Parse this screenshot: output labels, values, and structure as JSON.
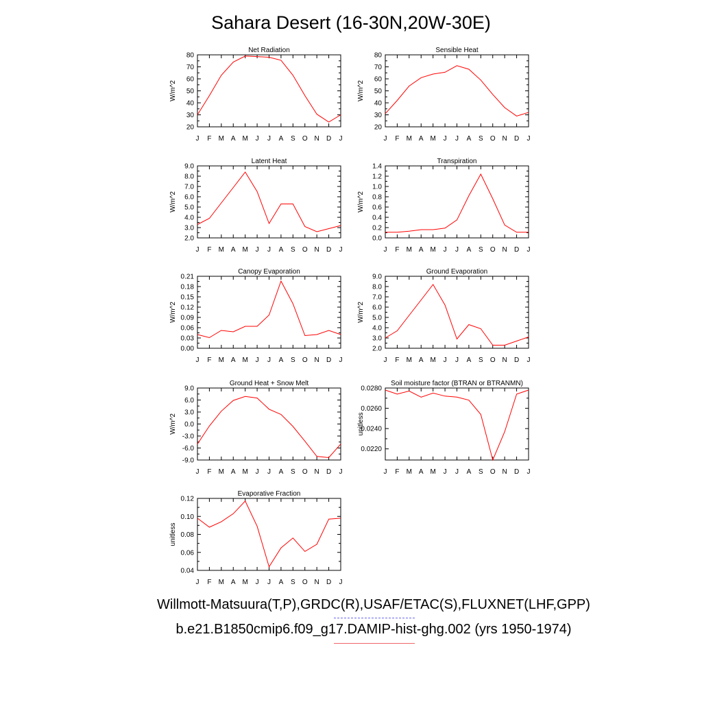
{
  "title": "Sahara Desert (16-30N,20W-30E)",
  "footer": {
    "obs": "Willmott-Matsuura(T,P),GRDC(R),USAF/ETAC(S),FLUXNET(LHF,GPP)",
    "model": "b.e21.B1850cmip6.f09_g17.DAMIP-hist-ghg.002 (yrs 1950-1974)"
  },
  "colors": {
    "line": "#ff0000",
    "obs_legend": "#6666ee",
    "model_legend": "#ee6666"
  },
  "chart_data": [
    {
      "type": "line",
      "title": "Net Radiation",
      "ylabel": "W/m^2",
      "categories": [
        "J",
        "F",
        "M",
        "A",
        "M",
        "J",
        "J",
        "A",
        "S",
        "O",
        "N",
        "D",
        "J"
      ],
      "ylim": [
        20,
        80
      ],
      "yticks": [
        "20",
        "30",
        "40",
        "50",
        "60",
        "70",
        "80"
      ],
      "values": [
        30,
        46,
        63,
        74,
        79,
        78.5,
        78,
        75.5,
        63,
        46,
        30.5,
        24,
        30
      ]
    },
    {
      "type": "line",
      "title": "Sensible Heat",
      "ylabel": "W/m^2",
      "categories": [
        "J",
        "F",
        "M",
        "A",
        "M",
        "J",
        "J",
        "A",
        "S",
        "O",
        "N",
        "D",
        "J"
      ],
      "ylim": [
        20,
        80
      ],
      "yticks": [
        "20",
        "30",
        "40",
        "50",
        "60",
        "70",
        "80"
      ],
      "values": [
        31,
        42,
        54,
        61,
        64,
        65.5,
        71,
        68,
        59,
        47,
        36,
        29,
        32
      ]
    },
    {
      "type": "line",
      "title": "Latent Heat",
      "ylabel": "W/m^2",
      "categories": [
        "J",
        "F",
        "M",
        "A",
        "M",
        "J",
        "J",
        "A",
        "S",
        "O",
        "N",
        "D",
        "J"
      ],
      "ylim": [
        2,
        9
      ],
      "yticks": [
        "2.0",
        "3.0",
        "4.0",
        "5.0",
        "6.0",
        "7.0",
        "8.0",
        "9.0"
      ],
      "values": [
        3.3,
        3.9,
        5.4,
        6.9,
        8.4,
        6.5,
        3.4,
        5.3,
        5.3,
        3.1,
        2.6,
        2.9,
        3.2
      ]
    },
    {
      "type": "line",
      "title": "Transpiration",
      "ylabel": "W/m^2",
      "categories": [
        "J",
        "F",
        "M",
        "A",
        "M",
        "J",
        "J",
        "A",
        "S",
        "O",
        "N",
        "D",
        "J"
      ],
      "ylim": [
        0,
        1.4
      ],
      "yticks": [
        "0.0",
        "0.2",
        "0.4",
        "0.6",
        "0.8",
        "1.0",
        "1.2",
        "1.4"
      ],
      "values": [
        0.11,
        0.11,
        0.13,
        0.16,
        0.16,
        0.19,
        0.35,
        0.82,
        1.24,
        0.76,
        0.25,
        0.11,
        0.11
      ]
    },
    {
      "type": "line",
      "title": "Canopy Evaporation",
      "ylabel": "W/m^2",
      "categories": [
        "J",
        "F",
        "M",
        "A",
        "M",
        "J",
        "J",
        "A",
        "S",
        "O",
        "N",
        "D",
        "J"
      ],
      "ylim": [
        0,
        0.21
      ],
      "yticks": [
        "0.00",
        "0.03",
        "0.06",
        "0.09",
        "0.12",
        "0.15",
        "0.18",
        "0.21"
      ],
      "values": [
        0.04,
        0.031,
        0.052,
        0.048,
        0.064,
        0.064,
        0.097,
        0.196,
        0.13,
        0.037,
        0.04,
        0.052,
        0.04
      ]
    },
    {
      "type": "line",
      "title": "Ground Evaporation",
      "ylabel": "W/m^2",
      "categories": [
        "J",
        "F",
        "M",
        "A",
        "M",
        "J",
        "J",
        "A",
        "S",
        "O",
        "N",
        "D",
        "J"
      ],
      "ylim": [
        2,
        9
      ],
      "yticks": [
        "2.0",
        "3.0",
        "4.0",
        "5.0",
        "6.0",
        "7.0",
        "8.0",
        "9.0"
      ],
      "values": [
        3.0,
        3.7,
        5.2,
        6.7,
        8.2,
        6.2,
        2.9,
        4.3,
        3.9,
        2.3,
        2.3,
        2.7,
        3.1
      ]
    },
    {
      "type": "line",
      "title": "Ground Heat + Snow Melt",
      "ylabel": "W/m^2",
      "categories": [
        "J",
        "F",
        "M",
        "A",
        "M",
        "J",
        "J",
        "A",
        "S",
        "O",
        "N",
        "D",
        "J"
      ],
      "ylim": [
        -9,
        9
      ],
      "yticks": [
        "-9.0",
        "-6.0",
        "-3.0",
        "0.0",
        "3.0",
        "6.0",
        "9.0"
      ],
      "values": [
        -5.0,
        -0.5,
        3.2,
        5.9,
        6.9,
        6.5,
        3.7,
        2.4,
        -0.6,
        -4.3,
        -8.1,
        -8.4,
        -5.0
      ]
    },
    {
      "type": "line",
      "title": "Soil moisture factor (BTRAN or BTRANMN)",
      "ylabel": "unitless",
      "categories": [
        "J",
        "F",
        "M",
        "A",
        "M",
        "J",
        "J",
        "A",
        "S",
        "O",
        "N",
        "D",
        "J"
      ],
      "ylim": [
        0.0209,
        0.028
      ],
      "yticks": [
        "0.0220",
        "0.0240",
        "0.0260",
        "0.0280"
      ],
      "tick_values": [
        0.022,
        0.024,
        0.026,
        0.028
      ],
      "values": [
        0.0278,
        0.0274,
        0.0277,
        0.0271,
        0.0275,
        0.0272,
        0.0271,
        0.0268,
        0.0254,
        0.0209,
        0.0237,
        0.0274,
        0.0278
      ]
    },
    {
      "type": "line",
      "title": "Evaporative Fraction",
      "ylabel": "unitless",
      "categories": [
        "J",
        "F",
        "M",
        "A",
        "M",
        "J",
        "J",
        "A",
        "S",
        "O",
        "N",
        "D",
        "J"
      ],
      "ylim": [
        0.04,
        0.12
      ],
      "yticks": [
        "0.04",
        "0.06",
        "0.08",
        "0.10",
        "0.12"
      ],
      "values": [
        0.098,
        0.088,
        0.094,
        0.103,
        0.117,
        0.089,
        0.044,
        0.065,
        0.076,
        0.061,
        0.069,
        0.097,
        0.098
      ]
    }
  ]
}
